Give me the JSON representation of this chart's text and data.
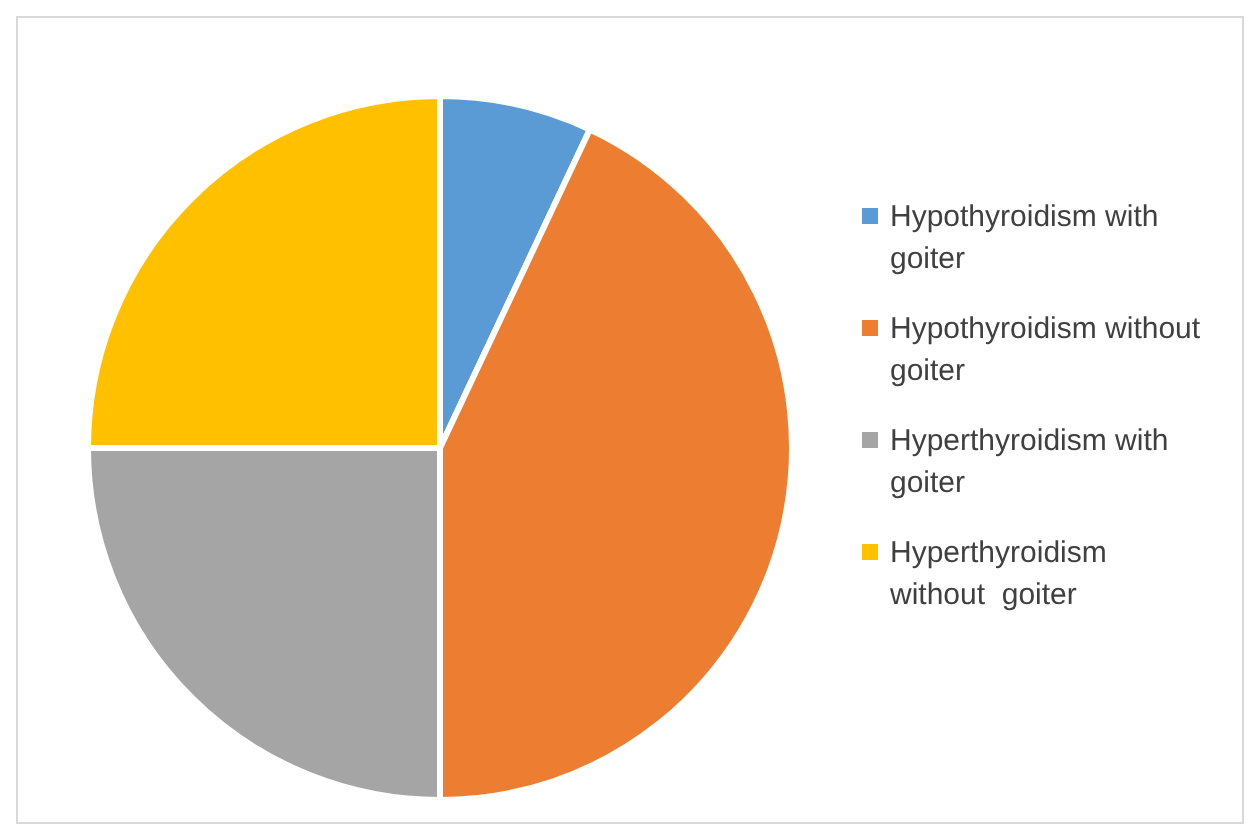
{
  "chart_data": {
    "type": "pie",
    "categories": [
      "Hypothyroidism with goiter",
      "Hypothyroidism without  goiter",
      "Hyperthyroidism with goiter",
      "Hyperthyroidism without  goiter"
    ],
    "values": [
      7,
      43,
      25,
      25
    ],
    "colors": [
      "#5b9bd5",
      "#ed7d31",
      "#a5a5a5",
      "#ffc000"
    ],
    "legend": "right"
  }
}
